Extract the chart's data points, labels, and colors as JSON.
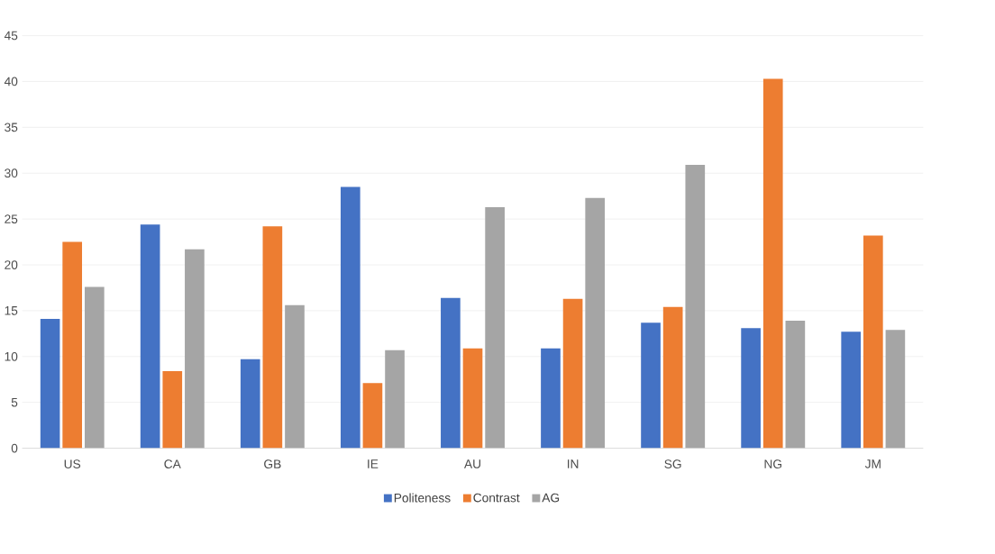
{
  "chart_data": {
    "type": "bar",
    "categories": [
      "US",
      "CA",
      "GB",
      "IE",
      "AU",
      "IN",
      "SG",
      "NG",
      "JM"
    ],
    "series": [
      {
        "name": "Politeness",
        "color": "#4472c4",
        "values": [
          14.1,
          24.4,
          9.7,
          28.5,
          16.4,
          10.9,
          13.7,
          13.1,
          12.7
        ]
      },
      {
        "name": "Contrast",
        "color": "#ed7d31",
        "values": [
          22.5,
          8.4,
          24.2,
          7.1,
          10.9,
          16.3,
          15.4,
          40.3,
          23.2
        ]
      },
      {
        "name": "AG",
        "color": "#a5a5a5",
        "values": [
          17.6,
          21.7,
          15.6,
          10.7,
          26.3,
          27.3,
          30.9,
          13.9,
          12.9
        ]
      }
    ],
    "ylim": [
      0,
      45
    ],
    "yticks": [
      0,
      5,
      10,
      15,
      20,
      25,
      30,
      35,
      40,
      45
    ],
    "grid": "y",
    "legend": "bottom"
  }
}
